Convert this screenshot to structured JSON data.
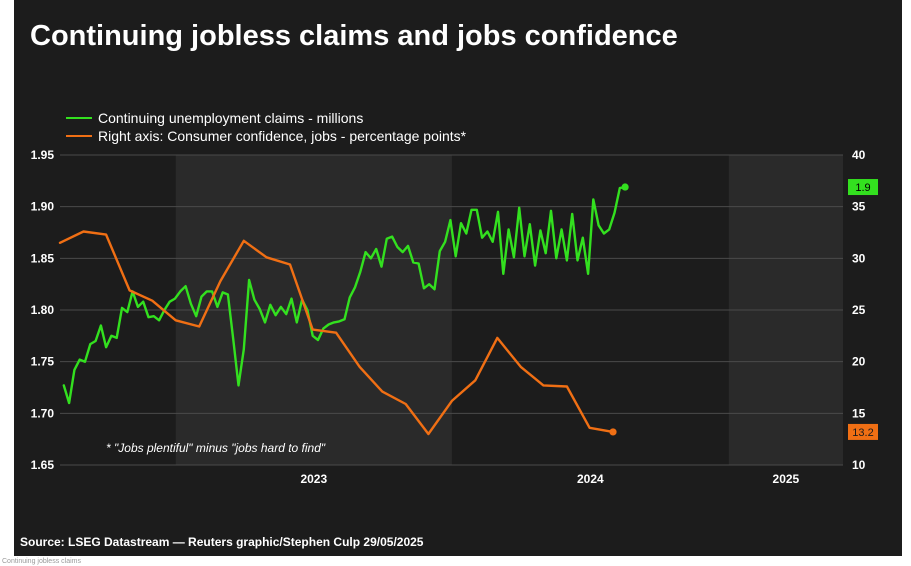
{
  "title": "Continuing jobless claims and jobs confidence",
  "footnote": "* \"Jobs plentiful\" minus \"jobs hard to find\"",
  "source": "Source: LSEG Datastream — Reuters graphic/Stephen Culp 29/05/2025",
  "caption": "Continuing jobless claims",
  "colors": {
    "background": "#1c1c1c",
    "band": "#2a2a2a",
    "grid": "#4a4a4a",
    "claims": "#33e01f",
    "confidence": "#f06f14",
    "text": "#ffffff"
  },
  "chart_data": {
    "type": "line",
    "title": "Continuing jobless claims and jobs confidence",
    "x_axis": {
      "ticks": [
        "2023",
        "2024",
        "2025"
      ],
      "range": [
        "2022-08",
        "2025-06"
      ]
    },
    "y_left": {
      "range": [
        1.65,
        1.95
      ],
      "ticks": [
        "1.65",
        "1.70",
        "1.75",
        "1.80",
        "1.85",
        "1.90",
        "1.95"
      ]
    },
    "y_right": {
      "range": [
        10,
        40
      ],
      "ticks": [
        "10",
        "15",
        "20",
        "25",
        "30",
        "35",
        "40"
      ]
    },
    "grid": true,
    "legend_position": "top-left",
    "series": [
      {
        "name": "Continuing unemployment claims - millions",
        "axis": "left",
        "color": "#33e01f",
        "last_value_label": "1.9",
        "points": [
          [
            "2022-08-06",
            1.727
          ],
          [
            "2022-08-13",
            1.71
          ],
          [
            "2022-08-20",
            1.742
          ],
          [
            "2022-08-27",
            1.752
          ],
          [
            "2022-09-03",
            1.75
          ],
          [
            "2022-09-10",
            1.767
          ],
          [
            "2022-09-17",
            1.77
          ],
          [
            "2022-09-24",
            1.785
          ],
          [
            "2022-10-01",
            1.764
          ],
          [
            "2022-10-08",
            1.775
          ],
          [
            "2022-10-15",
            1.773
          ],
          [
            "2022-10-22",
            1.802
          ],
          [
            "2022-10-29",
            1.798
          ],
          [
            "2022-11-05",
            1.818
          ],
          [
            "2022-11-12",
            1.803
          ],
          [
            "2022-11-19",
            1.808
          ],
          [
            "2022-11-26",
            1.793
          ],
          [
            "2022-12-03",
            1.794
          ],
          [
            "2022-12-10",
            1.79
          ],
          [
            "2022-12-17",
            1.8
          ],
          [
            "2022-12-24",
            1.808
          ],
          [
            "2022-12-31",
            1.811
          ],
          [
            "2023-01-07",
            1.818
          ],
          [
            "2023-01-14",
            1.823
          ],
          [
            "2023-01-21",
            1.806
          ],
          [
            "2023-01-28",
            1.794
          ],
          [
            "2023-02-04",
            1.813
          ],
          [
            "2023-02-11",
            1.818
          ],
          [
            "2023-02-18",
            1.818
          ],
          [
            "2023-02-25",
            1.803
          ],
          [
            "2023-03-04",
            1.817
          ],
          [
            "2023-03-11",
            1.815
          ],
          [
            "2023-03-18",
            1.772
          ],
          [
            "2023-03-25",
            1.727
          ],
          [
            "2023-04-01",
            1.762
          ],
          [
            "2023-04-08",
            1.829
          ],
          [
            "2023-04-15",
            1.81
          ],
          [
            "2023-04-22",
            1.801
          ],
          [
            "2023-04-29",
            1.788
          ],
          [
            "2023-05-06",
            1.805
          ],
          [
            "2023-05-13",
            1.795
          ],
          [
            "2023-05-20",
            1.803
          ],
          [
            "2023-05-27",
            1.796
          ],
          [
            "2023-06-03",
            1.811
          ],
          [
            "2023-06-10",
            1.788
          ],
          [
            "2023-06-17",
            1.81
          ],
          [
            "2023-06-24",
            1.8
          ],
          [
            "2023-07-01",
            1.775
          ],
          [
            "2023-07-08",
            1.771
          ],
          [
            "2023-07-15",
            1.782
          ],
          [
            "2023-07-22",
            1.786
          ],
          [
            "2023-07-29",
            1.788
          ],
          [
            "2023-08-05",
            1.789
          ],
          [
            "2023-08-12",
            1.791
          ],
          [
            "2023-08-19",
            1.812
          ],
          [
            "2023-08-26",
            1.822
          ],
          [
            "2023-09-02",
            1.837
          ],
          [
            "2023-09-09",
            1.856
          ],
          [
            "2023-09-16",
            1.85
          ],
          [
            "2023-09-23",
            1.859
          ],
          [
            "2023-09-30",
            1.842
          ],
          [
            "2023-10-07",
            1.869
          ],
          [
            "2023-10-14",
            1.871
          ],
          [
            "2023-10-21",
            1.861
          ],
          [
            "2023-10-28",
            1.856
          ],
          [
            "2023-11-04",
            1.862
          ],
          [
            "2023-11-11",
            1.846
          ],
          [
            "2023-11-18",
            1.845
          ],
          [
            "2023-11-25",
            1.821
          ],
          [
            "2023-12-02",
            1.825
          ],
          [
            "2023-12-09",
            1.82
          ],
          [
            "2023-12-16",
            1.857
          ],
          [
            "2023-12-23",
            1.866
          ],
          [
            "2023-12-30",
            1.887
          ],
          [
            "2024-01-06",
            1.852
          ],
          [
            "2024-01-13",
            1.884
          ],
          [
            "2024-01-20",
            1.874
          ],
          [
            "2024-01-27",
            1.897
          ],
          [
            "2024-02-03",
            1.897
          ],
          [
            "2024-02-10",
            1.87
          ],
          [
            "2024-02-17",
            1.876
          ],
          [
            "2024-02-24",
            1.866
          ],
          [
            "2024-03-02",
            1.895
          ],
          [
            "2024-03-09",
            1.835
          ],
          [
            "2024-03-16",
            1.878
          ],
          [
            "2024-03-23",
            1.851
          ],
          [
            "2024-03-30",
            1.899
          ],
          [
            "2024-04-06",
            1.852
          ],
          [
            "2024-04-13",
            1.883
          ],
          [
            "2024-04-20",
            1.843
          ],
          [
            "2024-04-27",
            1.877
          ],
          [
            "2024-05-04",
            1.855
          ],
          [
            "2024-05-11",
            1.896
          ],
          [
            "2024-05-18",
            1.85
          ],
          [
            "2024-05-25",
            1.878
          ],
          [
            "2024-06-01",
            1.848
          ],
          [
            "2024-06-08",
            1.893
          ],
          [
            "2024-06-15",
            1.848
          ],
          [
            "2024-06-22",
            1.87
          ],
          [
            "2024-06-29",
            1.835
          ],
          [
            "2024-07-06",
            1.907
          ],
          [
            "2024-07-13",
            1.882
          ],
          [
            "2024-07-20",
            1.874
          ],
          [
            "2024-07-27",
            1.878
          ],
          [
            "2024-08-03",
            1.894
          ],
          [
            "2024-08-10",
            1.918
          ],
          [
            "2024-08-17",
            1.919
          ]
        ]
      },
      {
        "name": "Right axis: Consumer confidence, jobs - percentage points*",
        "axis": "right",
        "color": "#f06f14",
        "last_value_label": "13.2",
        "points": [
          [
            "2022-08-01",
            31.5
          ],
          [
            "2022-09-01",
            32.6
          ],
          [
            "2022-10-01",
            32.3
          ],
          [
            "2022-11-01",
            26.9
          ],
          [
            "2022-12-01",
            25.9
          ],
          [
            "2023-01-01",
            24.0
          ],
          [
            "2023-02-01",
            23.4
          ],
          [
            "2023-03-01",
            27.8
          ],
          [
            "2023-04-01",
            31.7
          ],
          [
            "2023-05-01",
            30.1
          ],
          [
            "2023-06-01",
            29.4
          ],
          [
            "2023-07-01",
            23.1
          ],
          [
            "2023-08-01",
            22.8
          ],
          [
            "2023-09-01",
            19.5
          ],
          [
            "2023-10-01",
            17.1
          ],
          [
            "2023-11-01",
            15.9
          ],
          [
            "2023-12-01",
            13.0
          ],
          [
            "2024-01-01",
            16.2
          ],
          [
            "2024-02-01",
            18.2
          ],
          [
            "2024-03-01",
            22.3
          ],
          [
            "2024-04-01",
            19.5
          ],
          [
            "2024-05-01",
            17.7
          ],
          [
            "2024-06-01",
            17.6
          ],
          [
            "2024-07-01",
            13.6
          ],
          [
            "2024-08-01",
            13.2
          ]
        ]
      }
    ]
  }
}
